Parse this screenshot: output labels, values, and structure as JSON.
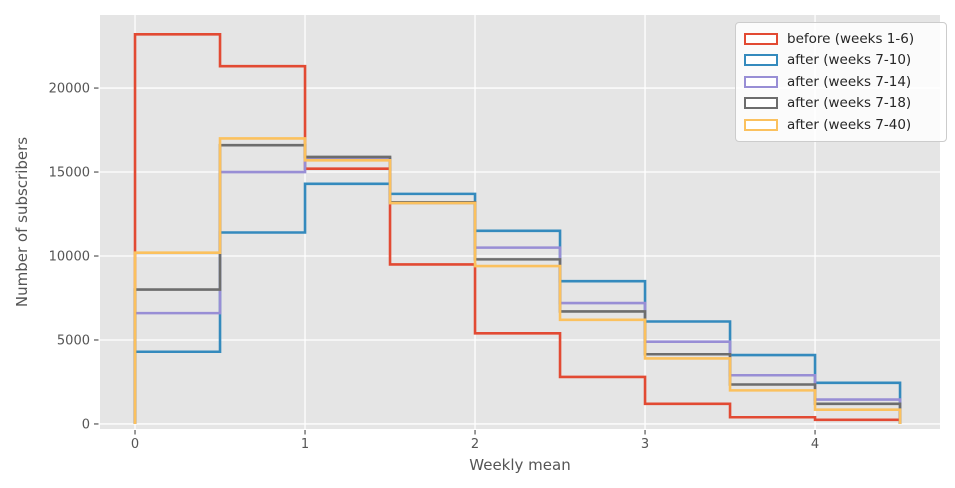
{
  "chart_data": {
    "type": "step-histogram",
    "title": "",
    "xlabel": "Weekly mean",
    "ylabel": "Number of subscribers",
    "grid": true,
    "legend_position": "upper right",
    "plot_bg_color": "#E5E5E5",
    "grid_color": "#FFFFFF",
    "tick_color": "#555555",
    "bin_edges": [
      0,
      0.5,
      1,
      1.5,
      2,
      2.5,
      3,
      3.5,
      4,
      4.5
    ],
    "series": [
      {
        "name": "before (weeks 1-6)",
        "color": "#E24A33",
        "values": [
          23200,
          21300,
          15200,
          9500,
          5400,
          2800,
          1200,
          400,
          250
        ]
      },
      {
        "name": "after (weeks 7-10)",
        "color": "#348ABD",
        "values": [
          4300,
          11400,
          14300,
          13700,
          11500,
          8500,
          6100,
          4100,
          2450
        ]
      },
      {
        "name": "after (weeks 7-14)",
        "color": "#988ED5",
        "values": [
          6600,
          15000,
          15850,
          13150,
          10500,
          7200,
          4900,
          2900,
          1450
        ]
      },
      {
        "name": "after (weeks 7-18)",
        "color": "#6D6D6D",
        "values": [
          8000,
          16600,
          15900,
          13200,
          9800,
          6700,
          4150,
          2350,
          1200
        ]
      },
      {
        "name": "after (weeks 7-40)",
        "color": "#FBC15E",
        "values": [
          10200,
          17000,
          15700,
          13150,
          9400,
          6200,
          3900,
          2000,
          850
        ]
      }
    ],
    "x_ticks": [
      0,
      1,
      2,
      3,
      4
    ],
    "x_tick_labels": [
      "0",
      "1",
      "2",
      "3",
      "4"
    ],
    "y_ticks": [
      0,
      5000,
      10000,
      15000,
      20000
    ],
    "y_tick_labels": [
      "0",
      "5000",
      "10000",
      "15000",
      "20000"
    ],
    "xlim": [
      -0.206,
      4.735
    ],
    "ylim": [
      -300,
      24350
    ]
  }
}
